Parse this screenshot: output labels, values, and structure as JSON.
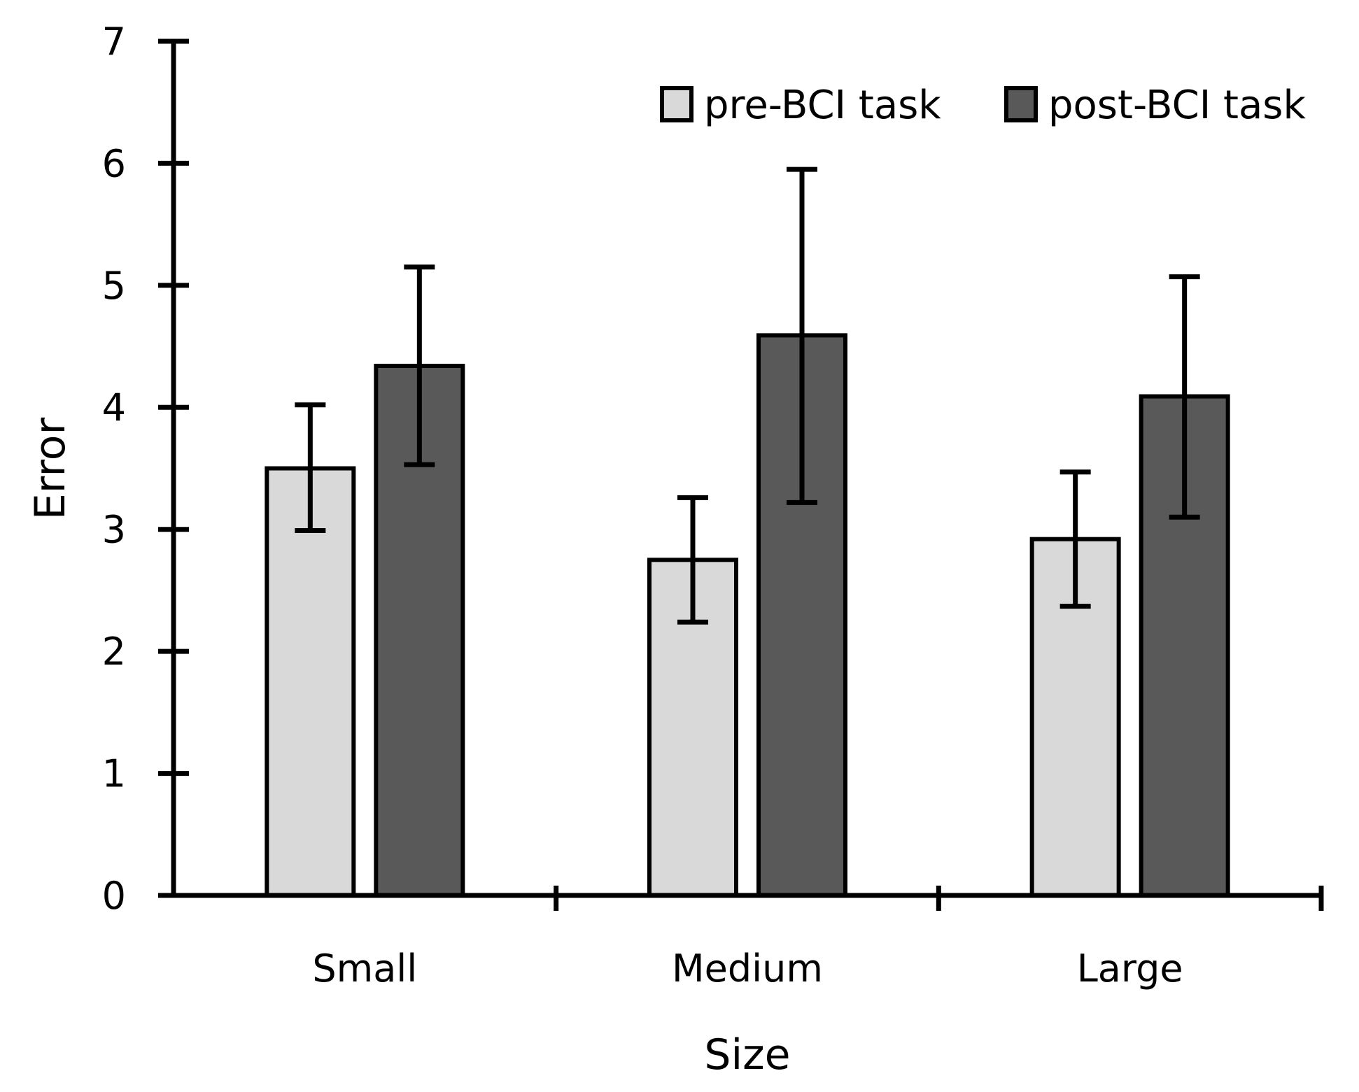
{
  "chart_data": {
    "type": "bar",
    "title": "",
    "xlabel": "Size",
    "ylabel": "Error",
    "categories": [
      "Small",
      "Medium",
      "Large"
    ],
    "ylim": [
      0,
      7
    ],
    "yticks": [
      "0",
      "1",
      "2",
      "3",
      "4",
      "5",
      "6",
      "7"
    ],
    "grid": false,
    "legend_position": "top-right",
    "series": [
      {
        "name": "pre-BCI task",
        "color": "#d9d9d9",
        "values": [
          3.5,
          2.75,
          2.92
        ],
        "error_low": [
          2.99,
          2.24,
          2.37
        ],
        "error_high": [
          4.02,
          3.26,
          3.47
        ]
      },
      {
        "name": "post-BCI task",
        "color": "#595959",
        "values": [
          4.34,
          4.59,
          4.09
        ],
        "error_low": [
          3.53,
          3.22,
          3.1
        ],
        "error_high": [
          5.15,
          5.95,
          5.07
        ]
      }
    ]
  }
}
